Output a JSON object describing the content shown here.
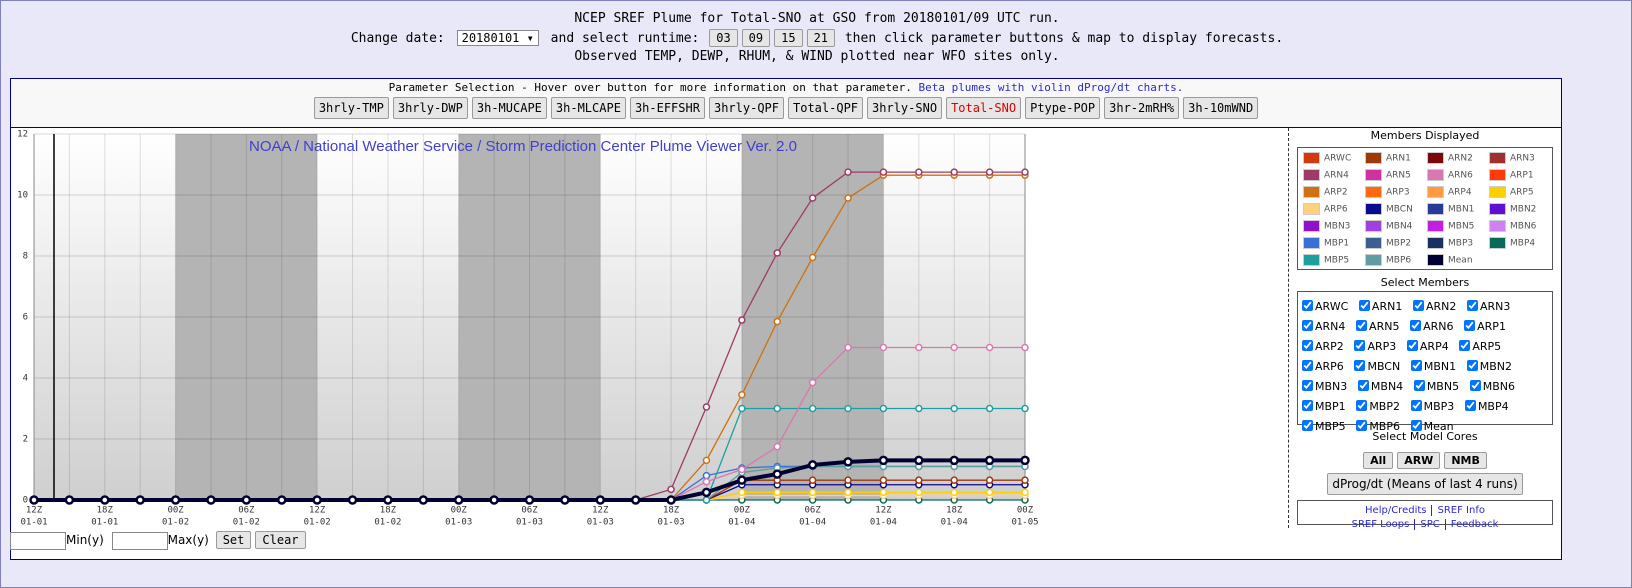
{
  "header": {
    "title": "NCEP SREF Plume for Total-SNO at GSO from 20180101/09 UTC run.",
    "change_date_label": "Change date:",
    "date": "20180101",
    "runtime_label": "and select runtime:",
    "runtimes": [
      "03",
      "09",
      "15",
      "21"
    ],
    "runtime_note": "then click parameter buttons & map to display forecasts.",
    "note": "Observed TEMP, DEWP, RHUM, & WIND plotted near WFO sites only."
  },
  "parameters": {
    "text": "Parameter Selection - Hover over button for more information on that parameter.",
    "link": "Beta plumes with violin dProg/dt charts.",
    "buttons": [
      "3hrly-TMP",
      "3hrly-DWP",
      "3h-MUCAPE",
      "3h-MLCAPE",
      "3h-EFFSHR",
      "3hrly-QPF",
      "Total-QPF",
      "3hrly-SNO",
      "Total-SNO",
      "Ptype-POP",
      "3hr-2mRH%",
      "3h-10mWND"
    ],
    "selected": 8
  },
  "chart_data": {
    "type": "line",
    "title": "NOAA / National Weather Service / Storm Prediction Center Plume Viewer Ver. 2.0",
    "categories": [
      [
        "12Z",
        "01-01"
      ],
      null,
      [
        "18Z",
        "01-01"
      ],
      null,
      [
        "00Z",
        "01-02"
      ],
      null,
      [
        "06Z",
        "01-02"
      ],
      null,
      [
        "12Z",
        "01-02"
      ],
      null,
      [
        "18Z",
        "01-02"
      ],
      null,
      [
        "00Z",
        "01-03"
      ],
      null,
      [
        "06Z",
        "01-03"
      ],
      null,
      [
        "12Z",
        "01-03"
      ],
      null,
      [
        "18Z",
        "01-03"
      ],
      null,
      [
        "00Z",
        "01-04"
      ],
      null,
      [
        "06Z",
        "01-04"
      ],
      null,
      [
        "12Z",
        "01-04"
      ],
      null,
      [
        "18Z",
        "01-04"
      ],
      null,
      [
        "00Z",
        "01-05"
      ]
    ],
    "ylim": [
      0,
      12
    ],
    "yticks": [
      0,
      2,
      4,
      6,
      8,
      10,
      12
    ],
    "grid": true,
    "legend": [
      {
        "name": "ARWC",
        "color": "#d03a10"
      },
      {
        "name": "ARN1",
        "color": "#a0380a"
      },
      {
        "name": "ARN2",
        "color": "#7a0a0a"
      },
      {
        "name": "ARN3",
        "color": "#a03030"
      },
      {
        "name": "ARN4",
        "color": "#9e3a66"
      },
      {
        "name": "ARN5",
        "color": "#d030a0"
      },
      {
        "name": "ARN6",
        "color": "#d878b0"
      },
      {
        "name": "ARP1",
        "color": "#ff3a0a"
      },
      {
        "name": "ARP2",
        "color": "#d07010"
      },
      {
        "name": "ARP3",
        "color": "#ff6a10"
      },
      {
        "name": "ARP4",
        "color": "#ff9a40"
      },
      {
        "name": "ARP5",
        "color": "#ffd000"
      },
      {
        "name": "ARP6",
        "color": "#ffd080"
      },
      {
        "name": "MBCN",
        "color": "#0a0a90"
      },
      {
        "name": "MBN1",
        "color": "#2a3a9a"
      },
      {
        "name": "MBN2",
        "color": "#6010d0"
      },
      {
        "name": "MBN3",
        "color": "#9010d0"
      },
      {
        "name": "MBN4",
        "color": "#a040e0"
      },
      {
        "name": "MBN5",
        "color": "#c020e0"
      },
      {
        "name": "MBN6",
        "color": "#d080f0"
      },
      {
        "name": "MBP1",
        "color": "#3a6fd8"
      },
      {
        "name": "MBP2",
        "color": "#3a6090"
      },
      {
        "name": "MBP3",
        "color": "#1a3060"
      },
      {
        "name": "MBP4",
        "color": "#0a6a5a"
      },
      {
        "name": "MBP5",
        "color": "#1aa0a0"
      },
      {
        "name": "MBP6",
        "color": "#5f9ea0"
      },
      {
        "name": "Mean",
        "color": "#000033"
      }
    ],
    "series": [
      {
        "name": "MBP4",
        "color": "#0a6a5a",
        "values": [
          0,
          0,
          0,
          0,
          0,
          0,
          0,
          0,
          0,
          0,
          0,
          0,
          0,
          0,
          0,
          0,
          0,
          0,
          0,
          0,
          0,
          0,
          0,
          0,
          0,
          0,
          0,
          0,
          0
        ]
      },
      {
        "name": "ARP6",
        "color": "#ffd080",
        "values": [
          0,
          0,
          0,
          0,
          0,
          0,
          0,
          0,
          0,
          0,
          0,
          0,
          0,
          0,
          0,
          0,
          0,
          0,
          0,
          0,
          0.15,
          0.15,
          0.15,
          0.15,
          0.15,
          0.15,
          0.15,
          0.15,
          0.15
        ]
      },
      {
        "name": "ARP5",
        "color": "#ffd000",
        "values": [
          0,
          0,
          0,
          0,
          0,
          0,
          0,
          0,
          0,
          0,
          0,
          0,
          0,
          0,
          0,
          0,
          0,
          0,
          0,
          0,
          0.25,
          0.25,
          0.25,
          0.25,
          0.25,
          0.25,
          0.25,
          0.25,
          0.25
        ]
      },
      {
        "name": "MBCN",
        "color": "#0a0a90",
        "values": [
          0,
          0,
          0,
          0,
          0,
          0,
          0,
          0,
          0,
          0,
          0,
          0,
          0,
          0,
          0,
          0,
          0,
          0,
          0,
          0,
          0.5,
          0.5,
          0.5,
          0.5,
          0.5,
          0.5,
          0.5,
          0.5,
          0.5
        ]
      },
      {
        "name": "ARN1",
        "color": "#a0380a",
        "values": [
          0,
          0,
          0,
          0,
          0,
          0,
          0,
          0,
          0,
          0,
          0,
          0,
          0,
          0,
          0,
          0,
          0,
          0,
          0,
          0,
          0.65,
          0.65,
          0.65,
          0.65,
          0.65,
          0.65,
          0.65,
          0.65,
          0.65
        ]
      },
      {
        "name": "MBP1",
        "color": "#3a6fd8",
        "values": [
          0,
          0,
          0,
          0,
          0,
          0,
          0,
          0,
          0,
          0,
          0,
          0,
          0,
          0,
          0,
          0,
          0,
          0,
          0,
          0.8,
          1.05,
          1.1,
          1.1,
          1.1,
          1.1,
          1.1,
          1.1,
          1.1,
          1.1
        ]
      },
      {
        "name": "MBP6",
        "color": "#5f9ea0",
        "values": [
          0,
          0,
          0,
          0,
          0,
          0,
          0,
          0,
          0,
          0,
          0,
          0,
          0,
          0,
          0,
          0,
          0,
          0,
          0,
          0,
          0.9,
          1.05,
          1.1,
          1.1,
          1.1,
          1.1,
          1.1,
          1.1,
          1.1
        ]
      },
      {
        "name": "MBP5",
        "color": "#1aa0a0",
        "values": [
          0,
          0,
          0,
          0,
          0,
          0,
          0,
          0,
          0,
          0,
          0,
          0,
          0,
          0,
          0,
          0,
          0,
          0,
          0,
          0,
          3,
          3,
          3,
          3,
          3,
          3,
          3,
          3,
          3
        ]
      },
      {
        "name": "ARN6",
        "color": "#d878b0",
        "values": [
          0,
          0,
          0,
          0,
          0,
          0,
          0,
          0,
          0,
          0,
          0,
          0,
          0,
          0,
          0,
          0,
          0,
          0,
          0,
          0.6,
          1,
          1.75,
          3.85,
          5,
          5,
          5,
          5,
          5,
          5
        ]
      },
      {
        "name": "ARP2",
        "color": "#d07010",
        "values": [
          0,
          0,
          0,
          0,
          0,
          0,
          0,
          0,
          0,
          0,
          0,
          0,
          0,
          0,
          0,
          0,
          0,
          0,
          0,
          1.3,
          3.45,
          5.85,
          7.95,
          9.9,
          10.65,
          10.65,
          10.65,
          10.65,
          10.65
        ]
      },
      {
        "name": "ARN4",
        "color": "#9e3a66",
        "values": [
          0,
          0,
          0,
          0,
          0,
          0,
          0,
          0,
          0,
          0,
          0,
          0,
          0,
          0,
          0,
          0,
          0,
          0,
          0.35,
          3.05,
          5.9,
          8.1,
          9.9,
          10.75,
          10.75,
          10.75,
          10.75,
          10.75,
          10.75
        ]
      },
      {
        "name": "Mean",
        "color": "#000033",
        "values": [
          0,
          0,
          0,
          0,
          0,
          0,
          0,
          0,
          0,
          0,
          0,
          0,
          0,
          0,
          0,
          0,
          0,
          0,
          0,
          0.25,
          0.65,
          0.85,
          1.15,
          1.25,
          1.3,
          1.3,
          1.3,
          1.3,
          1.3
        ]
      }
    ]
  },
  "sidebar": {
    "members_title": "Members Displayed",
    "select_title": "Select Members",
    "cores_title": "Select Model Cores",
    "core_buttons": [
      "All",
      "ARW",
      "NMB"
    ],
    "dprog_button": "dProg/dt (Means of last 4 runs)",
    "links": [
      [
        "Help/Credits",
        "SREF Info"
      ],
      [
        "SREF Loops",
        "SPC",
        "Feedback"
      ]
    ]
  },
  "yrange": {
    "min_label": "Min(y)",
    "max_label": "Max(y)",
    "set": "Set",
    "clear": "Clear"
  }
}
